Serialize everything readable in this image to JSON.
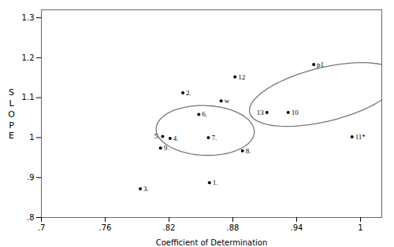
{
  "chart_data": {
    "type": "scatter",
    "labels": [
      "1.",
      "2.",
      "3.",
      "4.",
      "5.",
      "6.",
      "7.",
      "8.",
      "9.",
      "10",
      "11*",
      "12",
      "13",
      "p1",
      "w"
    ],
    "x": [
      0.858,
      0.833,
      0.793,
      0.821,
      0.814,
      0.848,
      0.857,
      0.889,
      0.812,
      0.932,
      0.992,
      0.882,
      0.912,
      0.956,
      0.869
    ],
    "values": [
      0.887,
      1.112,
      0.872,
      0.998,
      1.003,
      1.058,
      1.0,
      0.967,
      0.974,
      1.063,
      1.002,
      1.152,
      1.063,
      1.183,
      1.092
    ],
    "color": "#000000",
    "marker": "dot",
    "xlabel": "Coefficient of Determination",
    "ylabel": "SLOPE",
    "xlim": [
      0.7,
      1.02
    ],
    "ylim": [
      0.8,
      1.32
    ],
    "xticks": [
      {
        "value": 0.7,
        "label": ".7"
      },
      {
        "value": 0.76,
        "label": ".76"
      },
      {
        "value": 0.82,
        "label": ".82"
      },
      {
        "value": 0.88,
        "label": ".88"
      },
      {
        "value": 0.94,
        "label": ".94"
      },
      1
    ],
    "yticks": [
      {
        "value": 0.8,
        "label": ".8"
      },
      {
        "value": 0.9,
        "label": ".9"
      },
      1,
      {
        "value": 1.1,
        "label": "1.1"
      },
      {
        "value": 1.2,
        "label": "1.2"
      },
      {
        "value": 1.3,
        "label": "1.3"
      }
    ],
    "ellipses": [
      {
        "cx": 0.854,
        "cy": 1.018,
        "width": 0.092,
        "height": 0.125,
        "angle": 5,
        "color": "#777777",
        "line_style": "dashed"
      },
      {
        "cx": 0.966,
        "cy": 1.108,
        "width": 0.105,
        "height": 0.185,
        "angle": -38,
        "color": "#777777",
        "line_style": "dashed"
      }
    ],
    "grid": false
  }
}
